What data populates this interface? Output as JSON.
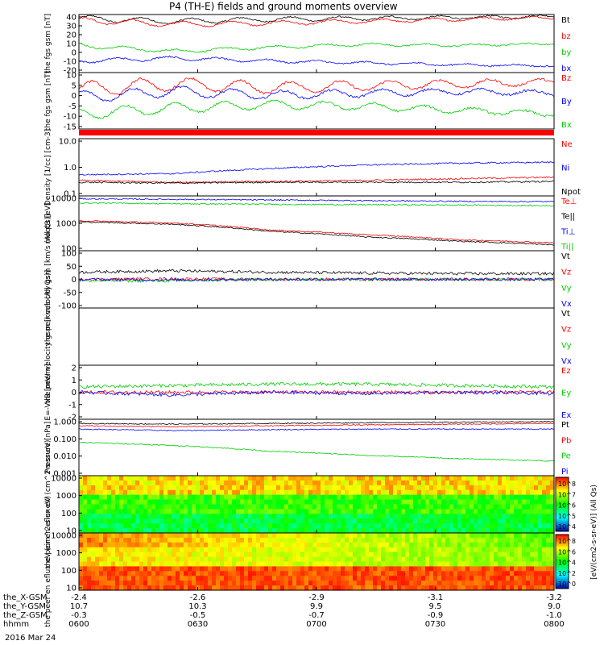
{
  "title": "P4 (TH-E) fields and ground moments overview",
  "date_label": "2016 Mar 24",
  "orbit_rows": [
    {
      "label": "the_X-GSM",
      "values": [
        "-2.4",
        "-2.6",
        "-2.9",
        "-3.1",
        "-3.2"
      ]
    },
    {
      "label": "the_Y-GSM",
      "values": [
        "10.7",
        "10.3",
        "9.9",
        "9.5",
        "9.0"
      ]
    },
    {
      "label": "the_Z-GSM",
      "values": [
        "-0.3",
        "-0.5",
        "-0.7",
        "-0.9",
        "-1.0"
      ]
    },
    {
      "label": "hhmm",
      "values": [
        "0600",
        "0630",
        "0700",
        "0730",
        "0800"
      ]
    }
  ],
  "colorbar_label": "[eV/(cm2-s-sr-eV)] (All Qs)",
  "colors": {
    "black": "#000000",
    "red": "#ff0000",
    "green": "#00cc00",
    "blue": "#0000ff"
  },
  "chart_data": [
    {
      "type": "line",
      "ylabel": "the fgs gsm [nT]",
      "ticks": [
        "40",
        "30",
        "20",
        "10",
        "0",
        "-10",
        "-20"
      ],
      "ylim": [
        -20,
        40
      ],
      "series": [
        {
          "name": "Bt",
          "color": "black",
          "profile": [
            36,
            33,
            35,
            36,
            37,
            38
          ]
        },
        {
          "name": "bz",
          "color": "red",
          "profile": [
            34,
            30,
            31,
            33,
            35,
            37
          ]
        },
        {
          "name": "by",
          "color": "green",
          "profile": [
            8,
            2,
            6,
            9,
            8,
            10
          ]
        },
        {
          "name": "bx",
          "color": "blue",
          "profile": [
            -8,
            -5,
            -8,
            -10,
            -12,
            -13
          ]
        }
      ]
    },
    {
      "type": "line",
      "ylabel": "the fgs gsm [nT]",
      "ticks": [
        "10",
        "5",
        "0",
        "-5",
        "-10",
        "-15"
      ],
      "ylim": [
        -18,
        12
      ],
      "series": [
        {
          "name": "Bz",
          "color": "red",
          "profile": [
            3,
            6,
            4,
            5,
            6,
            7
          ]
        },
        {
          "name": "By",
          "color": "blue",
          "profile": [
            -1,
            2,
            0,
            1,
            2,
            1
          ]
        },
        {
          "name": "Bx",
          "color": "green",
          "profile": [
            -10,
            -7,
            -5,
            -6,
            -8,
            -10
          ]
        }
      ]
    },
    {
      "type": "line",
      "ylabel": "Density [1/cc] [cm-3]",
      "ticks": [
        "10.0",
        "1.0",
        "0.1"
      ],
      "scale": "log",
      "ylim": [
        0.1,
        10
      ],
      "series": [
        {
          "name": "Ne",
          "color": "red",
          "profile": [
            0.35,
            0.3,
            0.32,
            0.35,
            0.4,
            0.45
          ]
        },
        {
          "name": "Ni",
          "color": "blue",
          "profile": [
            0.55,
            0.6,
            0.9,
            1.2,
            1.4,
            1.5
          ]
        },
        {
          "name": "Npot",
          "color": "black",
          "profile": [
            0.3,
            0.28,
            0.3,
            0.3,
            0.3,
            0.32
          ]
        }
      ]
    },
    {
      "type": "line",
      "ylabel": "moqt3 [eV]",
      "ticks": [
        "10000",
        "1000",
        "100"
      ],
      "scale": "log",
      "ylim": [
        50,
        12000
      ],
      "series": [
        {
          "name": "Te⊥",
          "color": "red",
          "profile": [
            1000,
            800,
            400,
            250,
            150,
            110
          ]
        },
        {
          "name": "Te||",
          "color": "black",
          "profile": [
            900,
            700,
            350,
            200,
            130,
            90
          ]
        },
        {
          "name": "Ti⊥",
          "color": "blue",
          "profile": [
            9000,
            8500,
            8000,
            7500,
            7000,
            6800
          ]
        },
        {
          "name": "Ti||",
          "color": "green",
          "profile": [
            6000,
            5500,
            5200,
            5000,
            4800,
            4500
          ]
        }
      ]
    },
    {
      "type": "line",
      "ylabel": "the peir velocity gsm [km/s (All Qs)]",
      "ticks": [
        "100",
        "50",
        "0",
        "-50",
        "-100"
      ],
      "ylim": [
        -100,
        100
      ],
      "series": [
        {
          "name": "Vt",
          "color": "black",
          "profile": [
            25,
            30,
            25,
            22,
            20,
            20
          ]
        },
        {
          "name": "Vz",
          "color": "red",
          "profile": [
            0,
            2,
            0,
            0,
            0,
            0
          ]
        },
        {
          "name": "Vy",
          "color": "green",
          "profile": [
            -5,
            -5,
            0,
            0,
            0,
            0
          ]
        },
        {
          "name": "Vx",
          "color": "blue",
          "profile": [
            0,
            -2,
            0,
            0,
            0,
            0
          ]
        }
      ]
    },
    {
      "type": "line",
      "ylabel": "the peer velocity gsm [km/s (All Qs)]",
      "ticks": [],
      "ylim": [
        0,
        1
      ],
      "series": [
        {
          "name": "Vt",
          "color": "black",
          "profile": []
        },
        {
          "name": "Vz",
          "color": "red",
          "profile": []
        },
        {
          "name": "Vy",
          "color": "green",
          "profile": []
        },
        {
          "name": "Vx",
          "color": "blue",
          "profile": []
        }
      ]
    },
    {
      "type": "line",
      "ylabel": "E=-VxB [mV/m]",
      "ticks": [
        "2",
        "1",
        "0",
        "-1",
        "-2"
      ],
      "ylim": [
        -2,
        2
      ],
      "series": [
        {
          "name": "Ez",
          "color": "red",
          "profile": [
            0,
            0,
            0,
            0,
            0,
            0
          ]
        },
        {
          "name": "Ey",
          "color": "green",
          "profile": [
            0.4,
            0.5,
            0.6,
            0.6,
            0.5,
            0.4
          ]
        },
        {
          "name": "Ex",
          "color": "blue",
          "profile": [
            0,
            -0.2,
            0,
            -0.1,
            0,
            -0.1
          ]
        }
      ]
    },
    {
      "type": "line",
      "ylabel": "Pressure [nPa]",
      "ticks": [
        "1.000",
        "0.100",
        "0.010",
        "0.001"
      ],
      "scale": "log",
      "ylim": [
        0.001,
        1
      ],
      "series": [
        {
          "name": "Pt",
          "color": "black",
          "profile": [
            0.6,
            0.55,
            0.6,
            0.65,
            0.7,
            0.75
          ]
        },
        {
          "name": "Pb",
          "color": "red",
          "profile": [
            0.45,
            0.4,
            0.45,
            0.5,
            0.55,
            0.6
          ]
        },
        {
          "name": "Pe",
          "color": "green",
          "profile": [
            0.06,
            0.04,
            0.02,
            0.012,
            0.008,
            0.006
          ]
        },
        {
          "name": "Pi",
          "color": "blue",
          "profile": [
            0.3,
            0.25,
            0.28,
            0.3,
            0.3,
            0.3
          ]
        }
      ]
    },
    {
      "type": "heatmap",
      "ylabel": "the peir en eflux eV (cm^2-s-sr-eV)",
      "ticks": [
        "10000",
        "1000",
        "100",
        "10"
      ],
      "colorbar_ticks": [
        "10^8",
        "10^7",
        "10^6",
        "10^5",
        "10^4"
      ]
    },
    {
      "type": "heatmap",
      "ylabel": "the peer en eflux eV (cm^2-s-sr-eV)",
      "ticks": [
        "10000",
        "1000",
        "100",
        "10"
      ],
      "colorbar_ticks": [
        "10^8",
        "10^6",
        "10^4",
        "10^2",
        "10^0"
      ]
    }
  ]
}
